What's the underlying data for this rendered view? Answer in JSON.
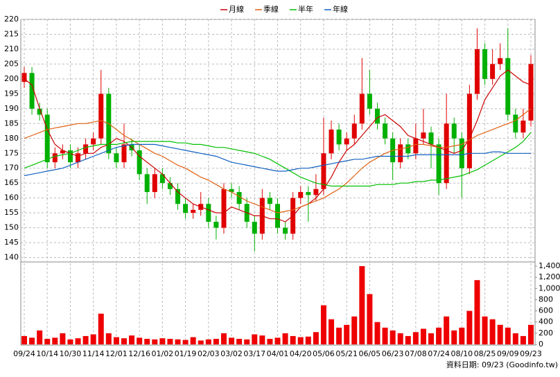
{
  "chart_data": {
    "type": "candlestick",
    "categories": [
      "09/24",
      null,
      null,
      "10/14",
      null,
      null,
      "10/30",
      null,
      null,
      "11/14",
      null,
      null,
      "12/01",
      null,
      null,
      "12/16",
      null,
      null,
      "01/02",
      null,
      null,
      "01/19",
      null,
      null,
      "02/03",
      null,
      null,
      "03/02",
      null,
      null,
      "03/17",
      null,
      null,
      "04/01",
      null,
      null,
      "04/20",
      null,
      null,
      "05/06",
      null,
      null,
      "05/21",
      null,
      null,
      "06/05",
      null,
      null,
      "06/23",
      null,
      null,
      "07/08",
      null,
      null,
      "07/24",
      null,
      null,
      "08/10",
      null,
      null,
      "08/25",
      null,
      null,
      "09/09",
      null,
      null,
      "09/23"
    ],
    "ohlc": {
      "open": [
        199,
        202,
        190,
        188,
        172,
        175,
        176,
        172,
        175,
        178,
        180,
        195,
        175,
        172,
        178,
        176,
        168,
        162,
        168,
        165,
        163,
        158,
        155,
        156,
        158,
        152,
        150,
        163,
        162,
        158,
        152,
        148,
        160,
        158,
        150,
        148,
        160,
        162,
        161,
        163,
        175,
        183,
        178,
        180,
        185,
        195,
        190,
        185,
        180,
        172,
        178,
        175,
        180,
        182,
        178,
        165,
        185,
        180,
        170,
        195,
        210,
        200,
        205,
        207,
        188,
        182,
        186
      ],
      "high": [
        204,
        204,
        192,
        190,
        177,
        178,
        178,
        177,
        180,
        182,
        203,
        197,
        177,
        185,
        180,
        178,
        170,
        170,
        170,
        167,
        165,
        160,
        158,
        162,
        160,
        154,
        165,
        165,
        164,
        160,
        154,
        163,
        162,
        160,
        152,
        162,
        164,
        164,
        168,
        187,
        186,
        185,
        182,
        188,
        207,
        203,
        192,
        187,
        182,
        180,
        180,
        185,
        190,
        184,
        180,
        195,
        187,
        182,
        198,
        217,
        212,
        210,
        212,
        217,
        190,
        190,
        208
      ],
      "low": [
        197,
        188,
        186,
        170,
        170,
        173,
        170,
        170,
        173,
        176,
        178,
        173,
        170,
        170,
        174,
        166,
        158,
        160,
        163,
        161,
        156,
        153,
        153,
        154,
        150,
        146,
        148,
        160,
        156,
        150,
        142,
        146,
        156,
        148,
        146,
        146,
        158,
        152,
        159,
        161,
        173,
        176,
        176,
        178,
        183,
        188,
        183,
        178,
        166,
        170,
        173,
        173,
        178,
        170,
        161,
        163,
        175,
        160,
        168,
        193,
        198,
        198,
        203,
        186,
        180,
        180,
        184
      ],
      "close": [
        202,
        190,
        188,
        172,
        175,
        176,
        172,
        175,
        178,
        180,
        195,
        175,
        172,
        178,
        176,
        168,
        162,
        168,
        165,
        163,
        158,
        155,
        156,
        158,
        152,
        150,
        163,
        162,
        158,
        152,
        148,
        160,
        158,
        150,
        148,
        160,
        162,
        161,
        163,
        175,
        183,
        178,
        180,
        185,
        195,
        190,
        185,
        180,
        172,
        178,
        175,
        180,
        182,
        178,
        165,
        185,
        180,
        170,
        195,
        210,
        200,
        205,
        207,
        188,
        182,
        186,
        205
      ]
    },
    "up_color": "#e00000",
    "down_color": "#00b000",
    "series": [
      {
        "name": "月線",
        "color": "#cc0000",
        "values": [
          200,
          198,
          190,
          183,
          178,
          176,
          175,
          174,
          175,
          175,
          177,
          178,
          180,
          179,
          177,
          174,
          172,
          170,
          168,
          165,
          162,
          160,
          158,
          157,
          156,
          155,
          155,
          157,
          156,
          155,
          154,
          154,
          153,
          153,
          152,
          154,
          157,
          158,
          160,
          163,
          167,
          172,
          176,
          178,
          181,
          184,
          187,
          188,
          186,
          184,
          181,
          180,
          179,
          178,
          177,
          176,
          175,
          176,
          180,
          186,
          193,
          197,
          201,
          203,
          201,
          199,
          198
        ]
      },
      {
        "name": "季線",
        "color": "#e06010",
        "values": [
          180,
          181,
          182,
          183,
          183.5,
          184,
          184.5,
          185,
          185,
          185.5,
          186,
          185,
          183,
          181,
          179.5,
          178,
          176.5,
          175,
          174,
          172.5,
          171,
          170,
          168.5,
          167,
          166,
          164.5,
          163,
          162,
          160.5,
          159,
          158,
          157,
          156,
          155,
          155.5,
          156,
          157,
          158,
          159,
          160,
          161.5,
          163,
          165,
          167.5,
          170,
          172,
          173.5,
          175,
          176,
          176.5,
          177,
          178,
          178,
          177.5,
          177,
          177,
          177.5,
          178,
          179.5,
          181,
          182,
          183,
          184,
          185,
          186,
          188,
          190
        ]
      },
      {
        "name": "半年",
        "color": "#00c000",
        "values": [
          170,
          171,
          172,
          173,
          174,
          174.5,
          175,
          176,
          177,
          177.5,
          178,
          178,
          178,
          178.5,
          179,
          179,
          179,
          179,
          179,
          179,
          178.5,
          178.5,
          178,
          178,
          177.5,
          177,
          177,
          176.5,
          176,
          175.5,
          175,
          174,
          173,
          171.5,
          170,
          168.5,
          167,
          166,
          165,
          164.5,
          164,
          164,
          164,
          164,
          164,
          164,
          164.5,
          164.5,
          164.5,
          165,
          165,
          165.5,
          165.5,
          166,
          166,
          166.5,
          167,
          167.5,
          168.5,
          169.5,
          171,
          172.5,
          174,
          175.5,
          177,
          179,
          182
        ]
      },
      {
        "name": "年線",
        "color": "#1060c0",
        "values": [
          167.5,
          168,
          168.5,
          169,
          169.5,
          170,
          171,
          172,
          173,
          174,
          175,
          176,
          177,
          177.5,
          178,
          178,
          178,
          178,
          177.5,
          177,
          176.5,
          176,
          175.5,
          175,
          174.5,
          174,
          173,
          172,
          171.5,
          171,
          170.5,
          170,
          169.5,
          169,
          169,
          169.5,
          170,
          170,
          170.5,
          171,
          171.5,
          172,
          172.5,
          173,
          173,
          173.5,
          174,
          174,
          174,
          174,
          174,
          174.5,
          174.5,
          174.5,
          174.5,
          174.5,
          174.5,
          174.5,
          175,
          175,
          175,
          175.5,
          175.5,
          175,
          175,
          175,
          175
        ]
      }
    ],
    "ylim": [
      138.5,
      220
    ],
    "yticks": [
      140,
      145,
      150,
      155,
      160,
      165,
      170,
      175,
      180,
      185,
      190,
      195,
      200,
      205,
      210,
      215,
      220
    ],
    "volume": {
      "color": "#ee0000",
      "ylim": [
        0,
        1450
      ],
      "yticks": [
        0,
        200,
        400,
        600,
        800,
        {
          "value": 1000,
          "label": "1,000"
        },
        {
          "value": 1200,
          "label": "1,200"
        },
        {
          "value": 1400,
          "label": "1,400"
        }
      ],
      "values": [
        150,
        120,
        250,
        100,
        120,
        200,
        90,
        110,
        150,
        180,
        550,
        200,
        130,
        110,
        160,
        120,
        100,
        90,
        110,
        100,
        90,
        80,
        130,
        70,
        90,
        100,
        200,
        120,
        100,
        90,
        180,
        160,
        100,
        120,
        200,
        150,
        130,
        140,
        220,
        700,
        450,
        300,
        350,
        500,
        1400,
        900,
        400,
        300,
        250,
        200,
        150,
        220,
        280,
        200,
        300,
        500,
        250,
        300,
        600,
        1150,
        500,
        450,
        350,
        300,
        200,
        150,
        350
      ]
    },
    "grid": true,
    "footnote": "資料日期: 09/23 (Goodinfo.tw)"
  }
}
